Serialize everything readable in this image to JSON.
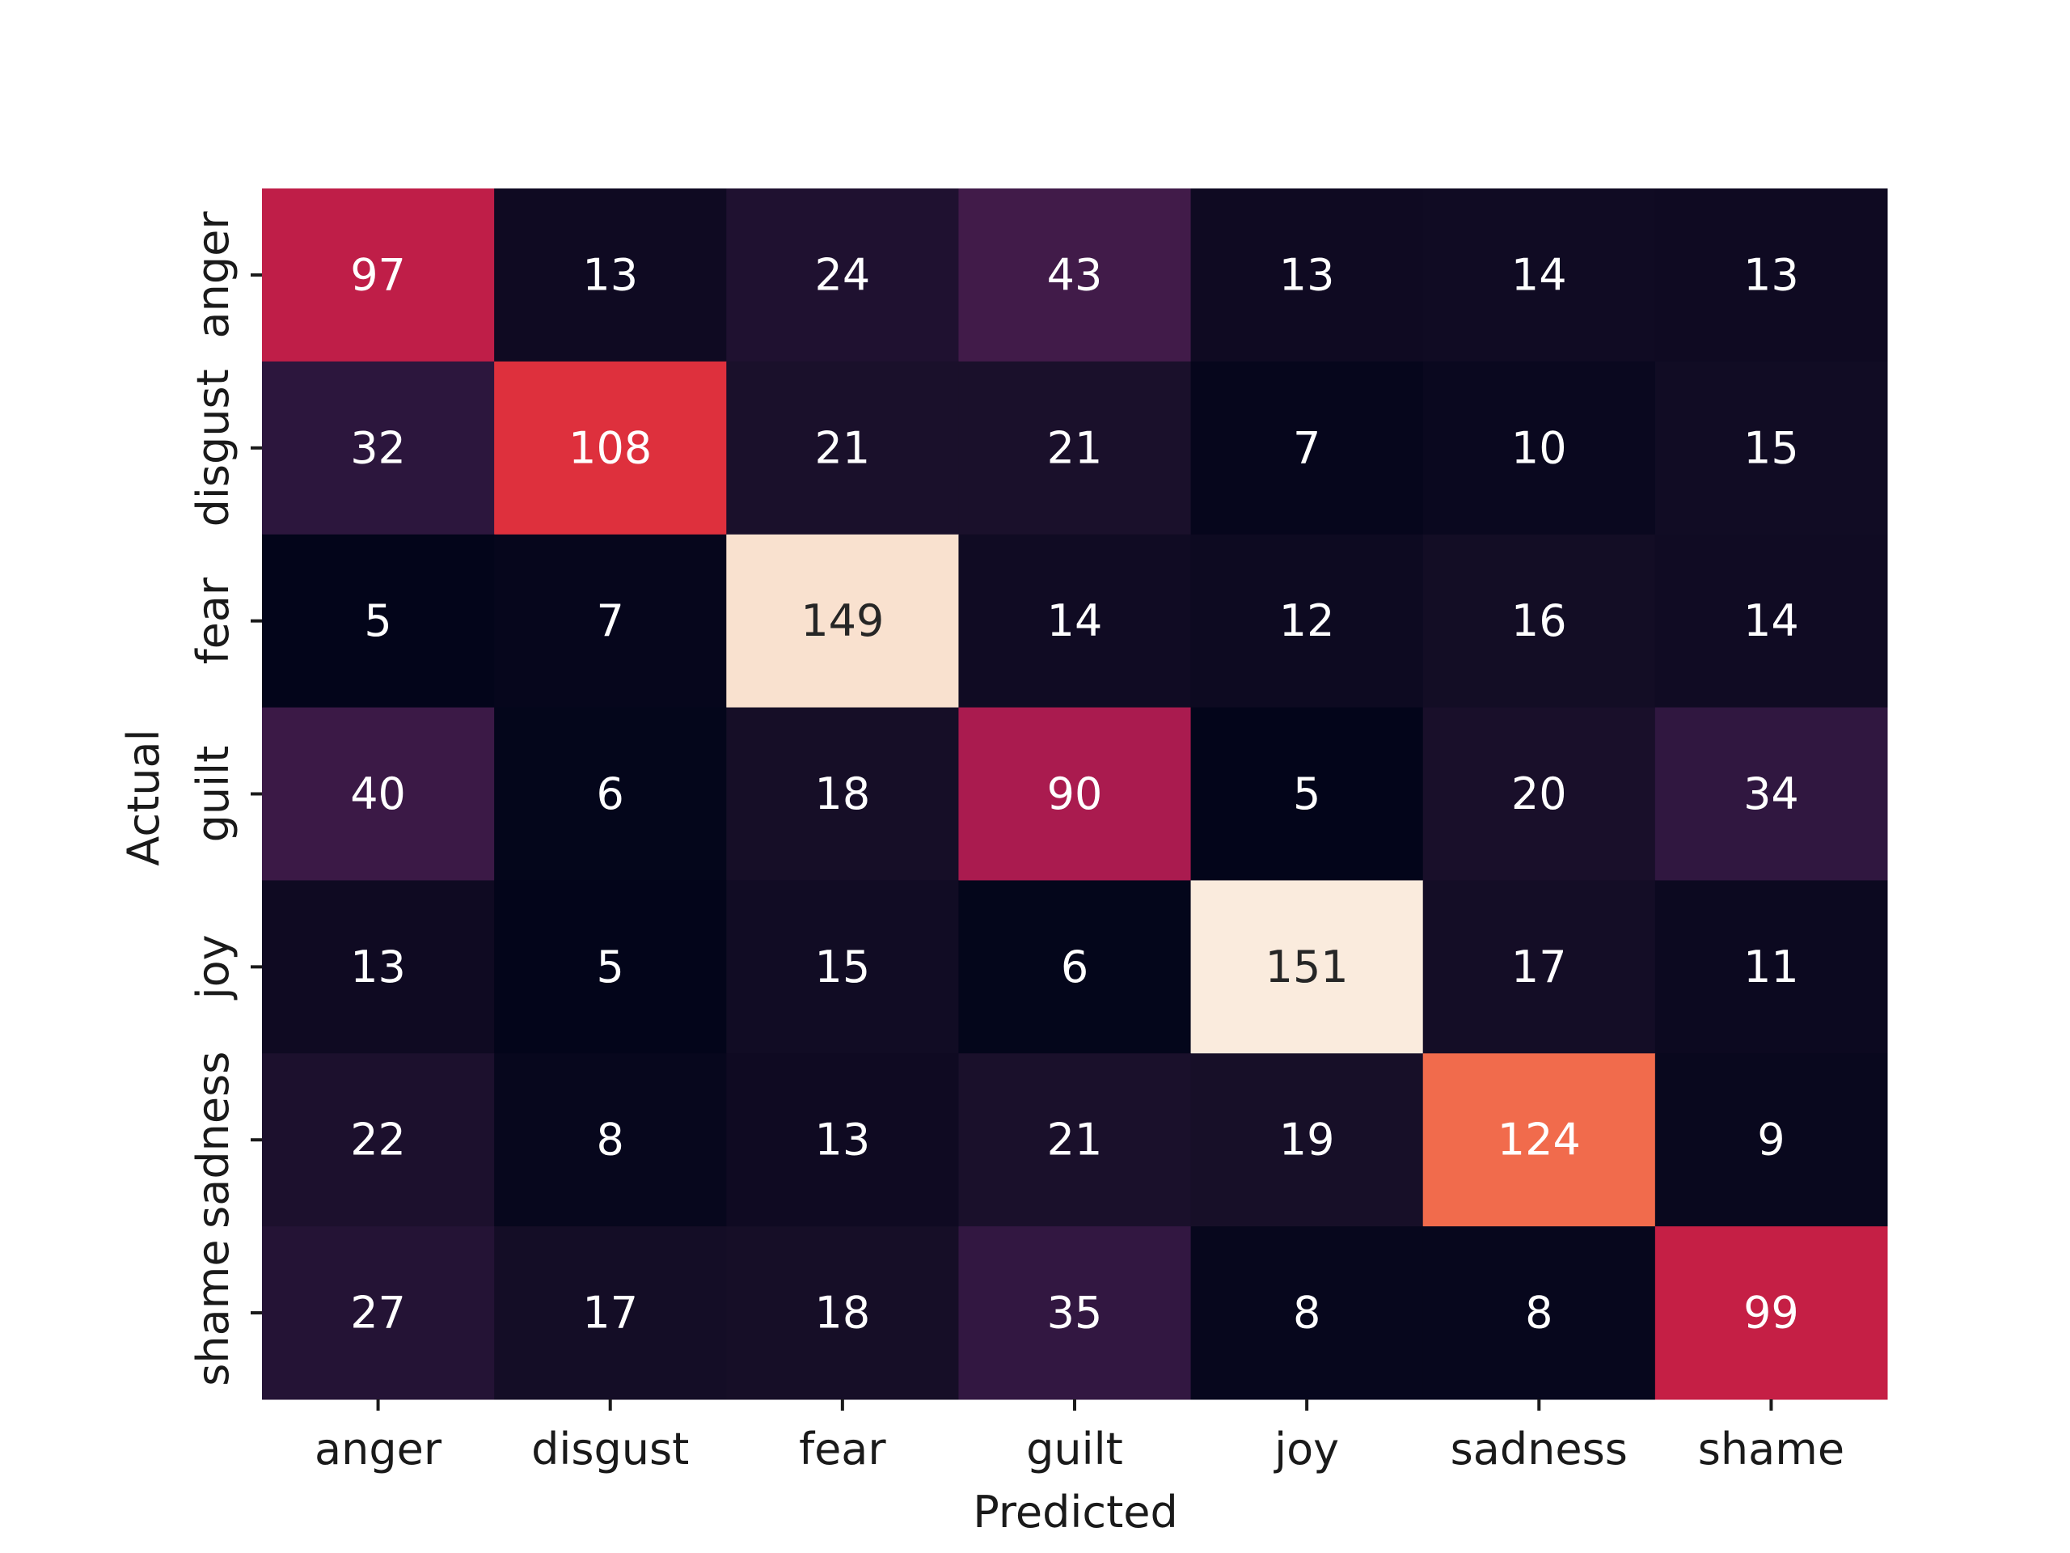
{
  "chart_data": {
    "type": "heatmap",
    "title": "",
    "xlabel": "Predicted",
    "ylabel": "Actual",
    "x_categories": [
      "anger",
      "disgust",
      "fear",
      "guilt",
      "joy",
      "sadness",
      "shame"
    ],
    "y_categories": [
      "anger",
      "disgust",
      "fear",
      "guilt",
      "joy",
      "sadness",
      "shame"
    ],
    "values": [
      [
        97,
        13,
        24,
        43,
        13,
        14,
        13
      ],
      [
        32,
        108,
        21,
        21,
        7,
        10,
        15
      ],
      [
        5,
        7,
        149,
        14,
        12,
        16,
        14
      ],
      [
        40,
        6,
        18,
        90,
        5,
        20,
        34
      ],
      [
        13,
        5,
        15,
        6,
        151,
        17,
        11
      ],
      [
        22,
        8,
        13,
        21,
        19,
        124,
        9
      ],
      [
        27,
        17,
        18,
        35,
        8,
        8,
        99
      ]
    ],
    "value_range": [
      5,
      151
    ],
    "colormap": "rocket",
    "colorbar": false,
    "annotations": true,
    "grid": false
  }
}
